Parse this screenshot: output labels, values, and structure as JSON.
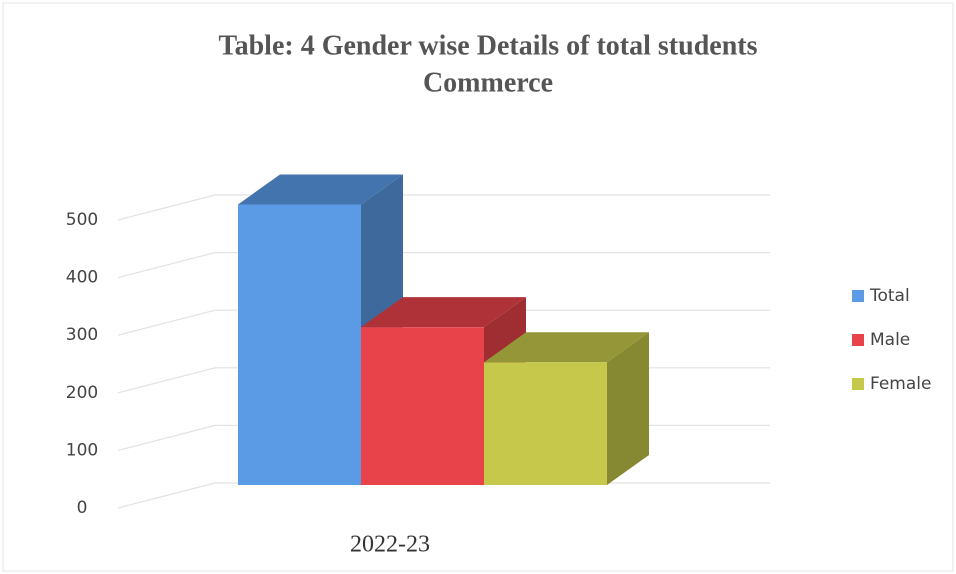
{
  "chart_data": {
    "type": "bar3d",
    "title": "Table: 4 Gender wise Details of total students",
    "subtitle": "Commerce",
    "categories": [
      "2022-23"
    ],
    "series": [
      {
        "name": "Total",
        "color": "#5b9be6",
        "values": [
          487
        ]
      },
      {
        "name": "Male",
        "color": "#e8434a",
        "values": [
          274
        ]
      },
      {
        "name": "Female",
        "color": "#c5c84a",
        "values": [
          213
        ]
      }
    ],
    "ylim": [
      0,
      500
    ],
    "yticks": [
      0,
      100,
      200,
      300,
      400,
      500
    ],
    "grid": true,
    "legend": "right"
  }
}
